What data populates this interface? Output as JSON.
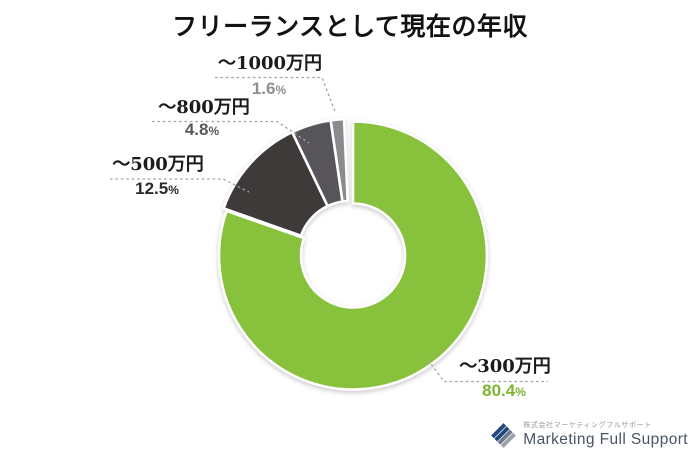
{
  "title": "フリーランスとして現在の年収",
  "chart_data": {
    "type": "pie",
    "donut": true,
    "title": "フリーランスとして現在の年収",
    "legend_position": "callout-labels",
    "unit": "%",
    "slices": [
      {
        "label": "〜300万円",
        "value": 80.4,
        "pct": "80.4",
        "pct_symbol": "%",
        "color": "#88c23c",
        "pct_color": "#7cb52f"
      },
      {
        "label": "〜500万円",
        "value": 12.5,
        "pct": "12.5",
        "pct_symbol": "%",
        "color": "#3d3a39",
        "pct_color": "#2d2a2a"
      },
      {
        "label": "〜800万円",
        "value": 4.8,
        "pct": "4.8",
        "pct_symbol": "%",
        "color": "#575559",
        "pct_color": "#5a585a"
      },
      {
        "label": "〜1000万円",
        "value": 1.6,
        "pct": "1.6",
        "pct_symbol": "%",
        "color": "#8c8a8e",
        "pct_color": "#8f8f91"
      }
    ]
  },
  "footer": {
    "company_ja": "株式会社マーケティングフルサポート",
    "company_en": "Marketing Full Support"
  }
}
